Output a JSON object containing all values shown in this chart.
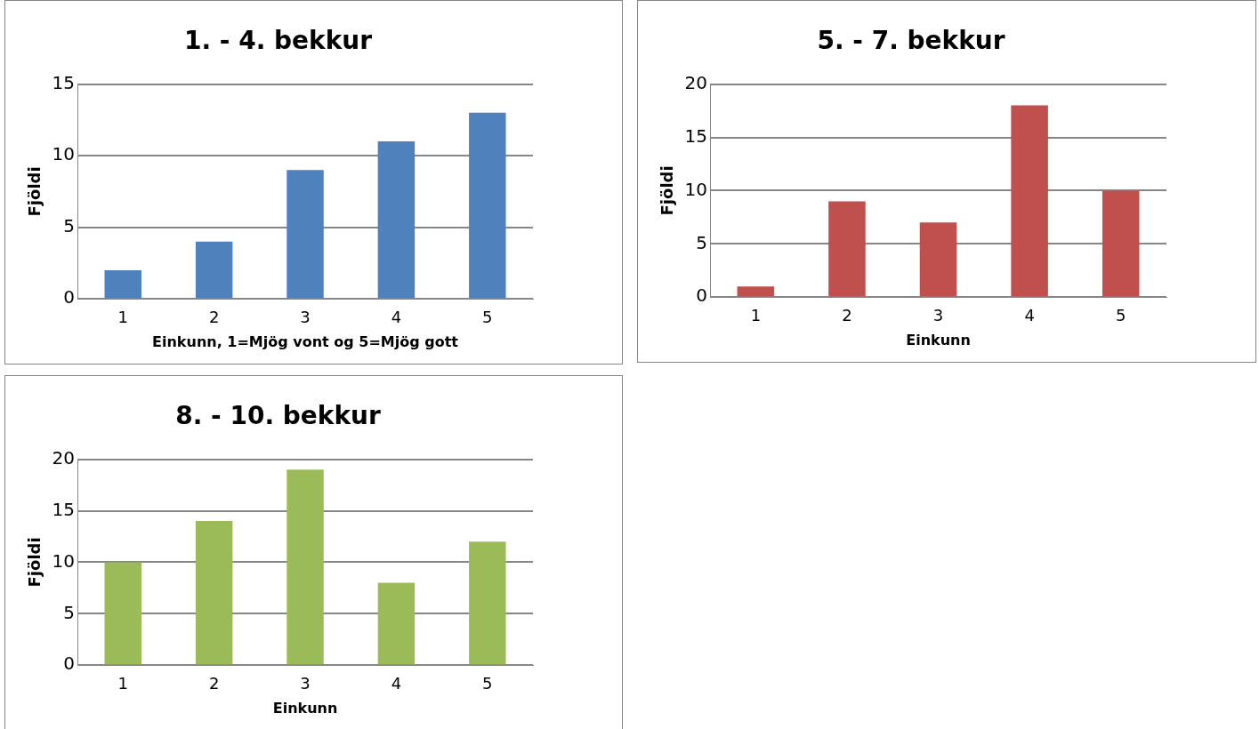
{
  "chart_data": [
    {
      "type": "bar",
      "title": "1. - 4. bekkur",
      "categories": [
        "1",
        "2",
        "3",
        "4",
        "5"
      ],
      "values": [
        2,
        4,
        9,
        11,
        13
      ],
      "color": "#4f81bd",
      "xlabel": "Einkunn, 1=Mjög vont og 5=Mjög gott",
      "ylabel": "Fjöldi",
      "ylim": [
        0,
        15
      ],
      "yticks": [
        0,
        5,
        10,
        15
      ],
      "grid": "y"
    },
    {
      "type": "bar",
      "title": "5. - 7. bekkur",
      "categories": [
        "1",
        "2",
        "3",
        "4",
        "5"
      ],
      "values": [
        1,
        9,
        7,
        18,
        10
      ],
      "color": "#c0504d",
      "xlabel": "Einkunn",
      "ylabel": "Fjöldi",
      "ylim": [
        0,
        20
      ],
      "yticks": [
        0,
        5,
        10,
        15,
        20
      ],
      "grid": "y"
    },
    {
      "type": "bar",
      "title": "8. - 10. bekkur",
      "categories": [
        "1",
        "2",
        "3",
        "4",
        "5"
      ],
      "values": [
        10,
        14,
        19,
        8,
        12
      ],
      "color": "#9bbb59",
      "xlabel": "Einkunn",
      "ylabel": "Fjöldi",
      "ylim": [
        0,
        20
      ],
      "yticks": [
        0,
        5,
        10,
        15,
        20
      ],
      "grid": "y"
    }
  ]
}
